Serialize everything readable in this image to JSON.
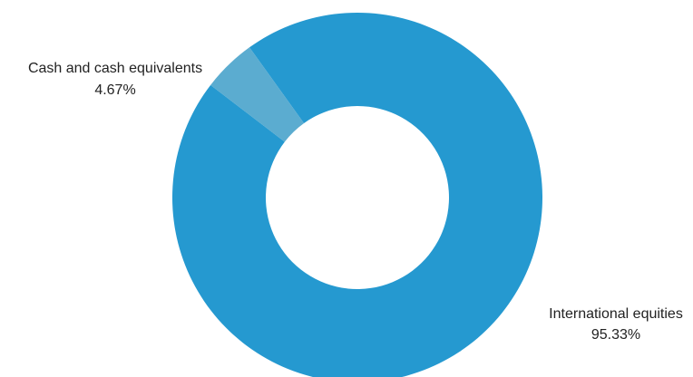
{
  "chart_data": {
    "type": "pie",
    "variant": "donut",
    "slices": [
      {
        "label": "International equities",
        "value": 95.33,
        "value_label": "95.33%",
        "color": "#2599D0"
      },
      {
        "label": "Cash and cash equivalents",
        "value": 4.67,
        "value_label": "4.67%",
        "color": "#5BACD0"
      }
    ],
    "legend": "none",
    "grid": false
  }
}
